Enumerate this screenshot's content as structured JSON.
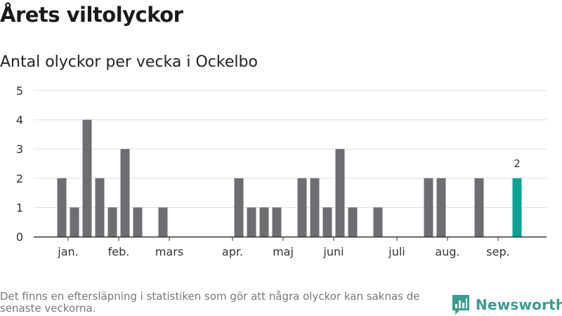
{
  "title": "Årets viltolyckor",
  "subtitle": "Antal olyckor per vecka i Ockelbo",
  "footnote": "Det finns en eftersläpning i statistiken som gör att några olyckor kan saknas de senaste veckorna.",
  "brand": {
    "name": "Newsworthy",
    "icon": "newsworthy-logo-icon"
  },
  "colors": {
    "bar": "#6e6d72",
    "highlight": "#0aa396",
    "grid": "#dddddd",
    "axis": "#333333"
  },
  "chart_data": {
    "type": "bar",
    "x": [
      1,
      2,
      3,
      4,
      5,
      6,
      7,
      8,
      9,
      10,
      11,
      12,
      13,
      14,
      15,
      16,
      17,
      18,
      19,
      20,
      21,
      22,
      23,
      24,
      25,
      26,
      27,
      28,
      29,
      30,
      31,
      32,
      33,
      34,
      35,
      36,
      37,
      38
    ],
    "values": [
      0,
      2,
      1,
      4,
      2,
      1,
      3,
      1,
      0,
      1,
      0,
      0,
      0,
      0,
      0,
      2,
      1,
      1,
      1,
      0,
      2,
      2,
      1,
      3,
      1,
      0,
      1,
      0,
      0,
      0,
      2,
      2,
      0,
      0,
      2,
      0,
      0,
      2
    ],
    "highlight_index": 37,
    "data_labels": [
      {
        "x": 38,
        "label": "2"
      }
    ],
    "ylim": [
      0,
      5
    ],
    "yticks": [
      "0",
      "1",
      "2",
      "3",
      "4",
      "5"
    ],
    "month_ticks": [
      {
        "label": "jan.",
        "x": 2.5
      },
      {
        "label": "feb.",
        "x": 6.5
      },
      {
        "label": "mars",
        "x": 10.5
      },
      {
        "label": "apr.",
        "x": 15.5
      },
      {
        "label": "maj",
        "x": 19.5
      },
      {
        "label": "juni",
        "x": 23.5
      },
      {
        "label": "juli",
        "x": 28.5
      },
      {
        "label": "aug.",
        "x": 32.5
      },
      {
        "label": "sep.",
        "x": 36.5
      }
    ],
    "grid": true,
    "xlabel": "",
    "ylabel": ""
  }
}
